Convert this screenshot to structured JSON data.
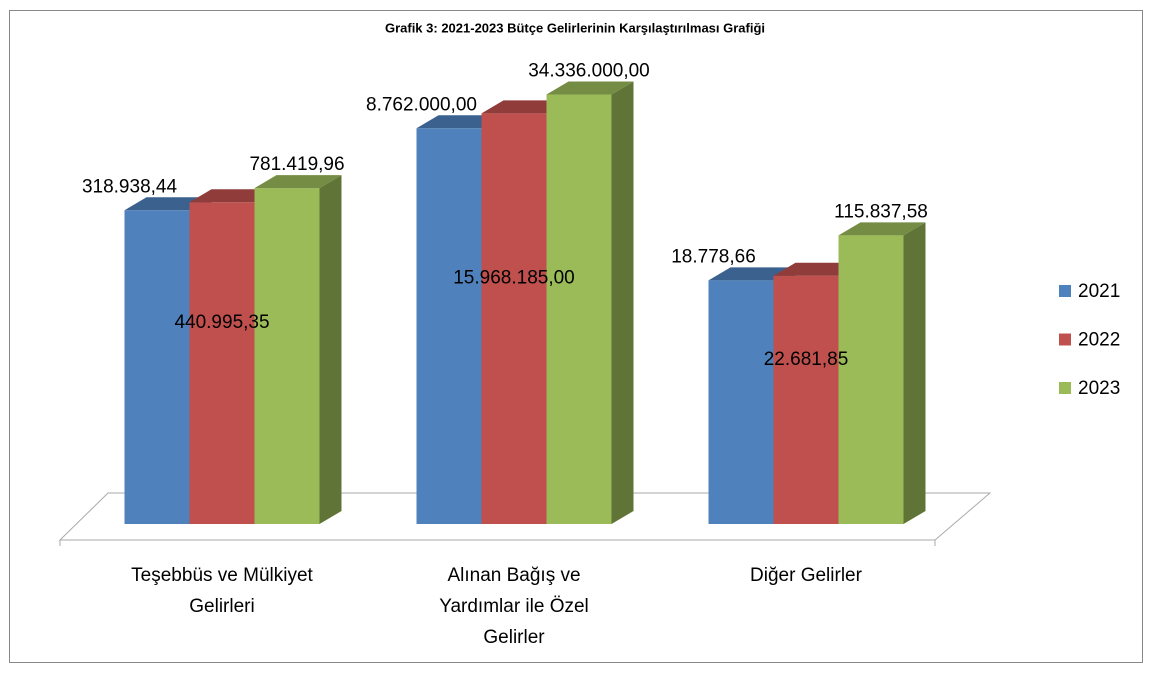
{
  "chart_data": {
    "type": "bar3d",
    "title": "Grafik  3: 2021-2023 Bütçe Gelirlerinin Karşılaştırılması Grafiği",
    "categories": [
      "Teşebbüs ve Mülkiyet Gelirleri",
      "Alınan Bağış ve Yardımlar ile Özel Gelirler",
      "Diğer Gelirler"
    ],
    "series": [
      {
        "name": "2021",
        "color": "#4f81bd",
        "values": [
          318938.44,
          8762000,
          18778.66
        ],
        "value_labels": [
          "318.938,44",
          "8.762.000,00",
          "18.778,66"
        ]
      },
      {
        "name": "2022",
        "color": "#c0504d",
        "values": [
          440995.35,
          15968185,
          22681.85
        ],
        "value_labels": [
          "440.995,35",
          "15.968.185,00",
          "22.681,85"
        ]
      },
      {
        "name": "2023",
        "color": "#9bbb59",
        "values": [
          781419.96,
          34336000,
          115837.58
        ],
        "value_labels": [
          "781.419,96",
          "34.336.000,00",
          "115.837,58"
        ]
      }
    ],
    "ylim": [
      1,
      1000000000
    ],
    "log": true,
    "legend": "right"
  }
}
